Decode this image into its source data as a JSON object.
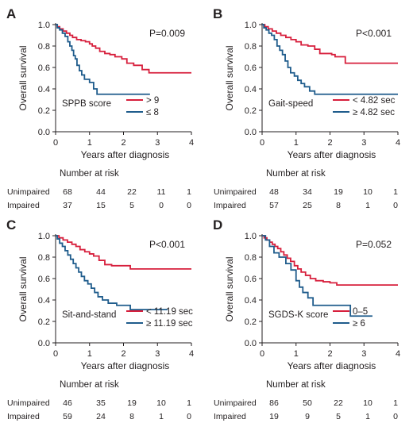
{
  "colors": {
    "high": "#d71f3c",
    "low": "#1f5c8c",
    "axis": "#231f20"
  },
  "chart_data": [
    {
      "type": "line",
      "panel": "A",
      "xlabel": "Years after diagnosis",
      "ylabel": "Overall survival",
      "xlim": [
        0,
        4
      ],
      "ylim": [
        0,
        1.0
      ],
      "xticks": [
        "0",
        "1",
        "2",
        "3",
        "4"
      ],
      "yticks": [
        "0.0",
        "0.2",
        "0.4",
        "0.6",
        "0.8",
        "1.0"
      ],
      "pvalue": "P=0.009",
      "legend_title": "SPPB score",
      "series": [
        {
          "name": "> 9",
          "color_key": "high",
          "points": [
            [
              0,
              1.0
            ],
            [
              0.05,
              0.98
            ],
            [
              0.12,
              0.96
            ],
            [
              0.22,
              0.94
            ],
            [
              0.32,
              0.92
            ],
            [
              0.42,
              0.9
            ],
            [
              0.5,
              0.88
            ],
            [
              0.62,
              0.86
            ],
            [
              0.75,
              0.85
            ],
            [
              0.88,
              0.84
            ],
            [
              1.0,
              0.82
            ],
            [
              1.08,
              0.8
            ],
            [
              1.18,
              0.78
            ],
            [
              1.3,
              0.75
            ],
            [
              1.45,
              0.73
            ],
            [
              1.6,
              0.72
            ],
            [
              1.75,
              0.7
            ],
            [
              1.95,
              0.68
            ],
            [
              2.1,
              0.64
            ],
            [
              2.3,
              0.62
            ],
            [
              2.55,
              0.58
            ],
            [
              2.75,
              0.55
            ],
            [
              4.0,
              0.55
            ]
          ]
        },
        {
          "name": "≤ 8",
          "color_key": "low",
          "points": [
            [
              0,
              1.0
            ],
            [
              0.05,
              0.97
            ],
            [
              0.12,
              0.95
            ],
            [
              0.2,
              0.92
            ],
            [
              0.28,
              0.89
            ],
            [
              0.36,
              0.84
            ],
            [
              0.42,
              0.8
            ],
            [
              0.48,
              0.76
            ],
            [
              0.53,
              0.71
            ],
            [
              0.58,
              0.68
            ],
            [
              0.63,
              0.62
            ],
            [
              0.7,
              0.57
            ],
            [
              0.77,
              0.53
            ],
            [
              0.85,
              0.49
            ],
            [
              1.0,
              0.46
            ],
            [
              1.12,
              0.4
            ],
            [
              1.22,
              0.35
            ],
            [
              2.78,
              0.35
            ]
          ]
        }
      ],
      "risk_table": {
        "title": "Number at risk",
        "rows": [
          {
            "label": "Unimpaired",
            "values": [
              "68",
              "44",
              "22",
              "11",
              "1"
            ]
          },
          {
            "label": "Impaired",
            "values": [
              "37",
              "15",
              "5",
              "0",
              "0"
            ]
          }
        ]
      }
    },
    {
      "type": "line",
      "panel": "B",
      "xlabel": "Years after diagnosis",
      "ylabel": "Overall survival",
      "xlim": [
        0,
        4
      ],
      "ylim": [
        0,
        1.0
      ],
      "xticks": [
        "0",
        "1",
        "2",
        "3",
        "4"
      ],
      "yticks": [
        "0.0",
        "0.2",
        "0.4",
        "0.6",
        "0.8",
        "1.0"
      ],
      "pvalue": "P<0.001",
      "legend_title": "Gait-speed",
      "series": [
        {
          "name": "< 4.82 sec",
          "color_key": "high",
          "points": [
            [
              0,
              1.0
            ],
            [
              0.08,
              0.98
            ],
            [
              0.18,
              0.96
            ],
            [
              0.3,
              0.94
            ],
            [
              0.42,
              0.92
            ],
            [
              0.55,
              0.9
            ],
            [
              0.7,
              0.88
            ],
            [
              0.85,
              0.86
            ],
            [
              1.0,
              0.84
            ],
            [
              1.15,
              0.81
            ],
            [
              1.35,
              0.8
            ],
            [
              1.55,
              0.77
            ],
            [
              1.7,
              0.73
            ],
            [
              2.05,
              0.72
            ],
            [
              2.15,
              0.7
            ],
            [
              2.45,
              0.64
            ],
            [
              4.0,
              0.64
            ]
          ]
        },
        {
          "name": "≥ 4.82 sec",
          "color_key": "low",
          "points": [
            [
              0,
              1.0
            ],
            [
              0.05,
              0.97
            ],
            [
              0.12,
              0.95
            ],
            [
              0.2,
              0.92
            ],
            [
              0.28,
              0.9
            ],
            [
              0.36,
              0.86
            ],
            [
              0.44,
              0.8
            ],
            [
              0.52,
              0.76
            ],
            [
              0.6,
              0.72
            ],
            [
              0.68,
              0.66
            ],
            [
              0.76,
              0.6
            ],
            [
              0.84,
              0.55
            ],
            [
              0.95,
              0.52
            ],
            [
              1.05,
              0.48
            ],
            [
              1.15,
              0.45
            ],
            [
              1.25,
              0.42
            ],
            [
              1.4,
              0.38
            ],
            [
              1.55,
              0.35
            ],
            [
              4.0,
              0.35
            ]
          ]
        }
      ],
      "risk_table": {
        "title": "Number at risk",
        "rows": [
          {
            "label": "Unimpaired",
            "values": [
              "48",
              "34",
              "19",
              "10",
              "1"
            ]
          },
          {
            "label": "Impaired",
            "values": [
              "57",
              "25",
              "8",
              "1",
              "0"
            ]
          }
        ]
      }
    },
    {
      "type": "line",
      "panel": "C",
      "xlabel": "Years after diagnosis",
      "ylabel": "Overall survival",
      "xlim": [
        0,
        4
      ],
      "ylim": [
        0,
        1.0
      ],
      "xticks": [
        "0",
        "1",
        "2",
        "3",
        "4"
      ],
      "yticks": [
        "0.0",
        "0.2",
        "0.4",
        "0.6",
        "0.8",
        "1.0"
      ],
      "pvalue": "P<0.001",
      "legend_title": "Sit-and-stand",
      "series": [
        {
          "name": "< 11.19 sec",
          "color_key": "high",
          "points": [
            [
              0,
              1.0
            ],
            [
              0.1,
              0.98
            ],
            [
              0.22,
              0.96
            ],
            [
              0.35,
              0.94
            ],
            [
              0.48,
              0.92
            ],
            [
              0.6,
              0.9
            ],
            [
              0.72,
              0.87
            ],
            [
              0.86,
              0.85
            ],
            [
              1.0,
              0.83
            ],
            [
              1.12,
              0.81
            ],
            [
              1.28,
              0.77
            ],
            [
              1.45,
              0.73
            ],
            [
              1.65,
              0.72
            ],
            [
              2.2,
              0.69
            ],
            [
              2.7,
              0.69
            ],
            [
              4.0,
              0.69
            ]
          ]
        },
        {
          "name": "≥ 11.19 sec",
          "color_key": "low",
          "points": [
            [
              0,
              1.0
            ],
            [
              0.05,
              0.97
            ],
            [
              0.12,
              0.93
            ],
            [
              0.2,
              0.9
            ],
            [
              0.28,
              0.86
            ],
            [
              0.36,
              0.82
            ],
            [
              0.44,
              0.78
            ],
            [
              0.52,
              0.74
            ],
            [
              0.6,
              0.7
            ],
            [
              0.68,
              0.66
            ],
            [
              0.76,
              0.62
            ],
            [
              0.85,
              0.58
            ],
            [
              0.95,
              0.55
            ],
            [
              1.05,
              0.51
            ],
            [
              1.15,
              0.47
            ],
            [
              1.25,
              0.43
            ],
            [
              1.38,
              0.4
            ],
            [
              1.55,
              0.37
            ],
            [
              1.8,
              0.35
            ],
            [
              2.2,
              0.31
            ],
            [
              3.3,
              0.31
            ]
          ]
        }
      ],
      "risk_table": {
        "title": "Number at risk",
        "rows": [
          {
            "label": "Unimpaired",
            "values": [
              "46",
              "35",
              "19",
              "10",
              "1"
            ]
          },
          {
            "label": "Impaired",
            "values": [
              "59",
              "24",
              "8",
              "1",
              "0"
            ]
          }
        ]
      }
    },
    {
      "type": "line",
      "panel": "D",
      "xlabel": "Years after diagnosis",
      "ylabel": "Overall survival",
      "xlim": [
        0,
        4
      ],
      "ylim": [
        0,
        1.0
      ],
      "xticks": [
        "0",
        "1",
        "2",
        "3",
        "4"
      ],
      "yticks": [
        "0.0",
        "0.2",
        "0.4",
        "0.6",
        "0.8",
        "1.0"
      ],
      "pvalue": "P=0.052",
      "legend_title": "SGDS-K score",
      "series": [
        {
          "name": "0–5",
          "color_key": "high",
          "points": [
            [
              0,
              1.0
            ],
            [
              0.06,
              0.98
            ],
            [
              0.14,
              0.96
            ],
            [
              0.22,
              0.94
            ],
            [
              0.3,
              0.92
            ],
            [
              0.38,
              0.9
            ],
            [
              0.46,
              0.88
            ],
            [
              0.55,
              0.85
            ],
            [
              0.64,
              0.82
            ],
            [
              0.74,
              0.79
            ],
            [
              0.84,
              0.76
            ],
            [
              0.95,
              0.72
            ],
            [
              1.05,
              0.69
            ],
            [
              1.15,
              0.66
            ],
            [
              1.28,
              0.63
            ],
            [
              1.42,
              0.6
            ],
            [
              1.58,
              0.58
            ],
            [
              1.8,
              0.57
            ],
            [
              2.0,
              0.56
            ],
            [
              2.2,
              0.54
            ],
            [
              4.0,
              0.54
            ]
          ]
        },
        {
          "name": "≥ 6",
          "color_key": "low",
          "points": [
            [
              0,
              1.0
            ],
            [
              0.1,
              0.96
            ],
            [
              0.22,
              0.9
            ],
            [
              0.35,
              0.84
            ],
            [
              0.5,
              0.8
            ],
            [
              0.7,
              0.74
            ],
            [
              0.85,
              0.68
            ],
            [
              1.0,
              0.58
            ],
            [
              1.1,
              0.52
            ],
            [
              1.2,
              0.47
            ],
            [
              1.35,
              0.42
            ],
            [
              1.5,
              0.35
            ],
            [
              2.55,
              0.35
            ],
            [
              2.6,
              0.25
            ],
            [
              3.25,
              0.25
            ]
          ]
        }
      ],
      "risk_table": {
        "title": "Number at risk",
        "rows": [
          {
            "label": "Unimpaired",
            "values": [
              "86",
              "50",
              "22",
              "10",
              "1"
            ]
          },
          {
            "label": "Impaired",
            "values": [
              "19",
              "9",
              "5",
              "1",
              "0"
            ]
          }
        ]
      }
    }
  ]
}
